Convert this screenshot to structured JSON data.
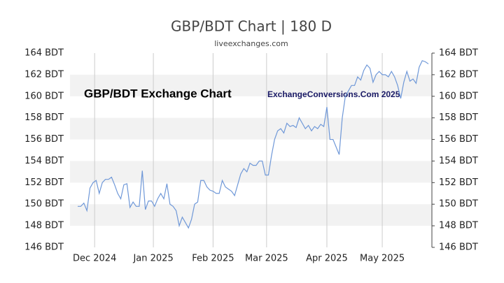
{
  "chart_data": {
    "type": "line",
    "title": "GBP/BDT Chart | 180 D",
    "subtitle": "liveexchanges.com",
    "annotations": [
      "GBP/BDT Exchange Chart",
      "ExchangeConversions.Com 2025"
    ],
    "color": "#6f98d8",
    "bands": true,
    "values": [
      149.8,
      149.8,
      150.1,
      149.4,
      151.5,
      152.0,
      152.2,
      151.0,
      152.0,
      152.3,
      152.3,
      152.5,
      151.8,
      151.0,
      150.5,
      151.8,
      151.9,
      149.7,
      150.2,
      149.8,
      149.8,
      153.1,
      149.5,
      150.3,
      150.3,
      149.8,
      150.5,
      151.0,
      150.5,
      151.9,
      150.0,
      149.8,
      149.4,
      148.0,
      148.8,
      148.3,
      147.8,
      148.6,
      150.0,
      150.2,
      152.2,
      152.2,
      151.6,
      151.3,
      151.2,
      151.0,
      151.0,
      152.2,
      151.6,
      151.4,
      151.2,
      150.8,
      151.8,
      152.8,
      153.3,
      153.0,
      153.8,
      153.6,
      153.6,
      154.0,
      154.0,
      152.7,
      152.7,
      154.5,
      156.0,
      156.8,
      157.0,
      156.6,
      157.5,
      157.2,
      157.3,
      157.1,
      158.0,
      157.5,
      157.0,
      157.3,
      156.8,
      157.2,
      157.0,
      157.4,
      157.2,
      159.0,
      156.0,
      156.0,
      155.3,
      154.6,
      158.0,
      160.0,
      160.5,
      161.0,
      161.0,
      161.8,
      161.5,
      162.4,
      162.9,
      162.6,
      161.3,
      162.0,
      162.3,
      162.0,
      162.0,
      161.8,
      162.3,
      161.8,
      161.0,
      159.8,
      161.3,
      162.3,
      161.4,
      161.6,
      161.2,
      162.7,
      163.3,
      163.2,
      163.0
    ],
    "xlim": [
      0,
      114
    ],
    "xticks": [
      {
        "value": 5.5,
        "label": "Dec 2024"
      },
      {
        "value": 24.6,
        "label": "Jan 2025"
      },
      {
        "value": 44,
        "label": "Feb 2025"
      },
      {
        "value": 61.4,
        "label": "Mar 2025"
      },
      {
        "value": 81,
        "label": "Apr 2025"
      },
      {
        "value": 99,
        "label": "May 2025"
      }
    ],
    "ylim": [
      146,
      164
    ],
    "yticks": [
      {
        "value": 146,
        "label": "146 BDT"
      },
      {
        "value": 148,
        "label": "148 BDT"
      },
      {
        "value": 150,
        "label": "150 BDT"
      },
      {
        "value": 152,
        "label": "152 BDT"
      },
      {
        "value": 154,
        "label": "154 BDT"
      },
      {
        "value": 156,
        "label": "156 BDT"
      },
      {
        "value": 158,
        "label": "158 BDT"
      },
      {
        "value": 160,
        "label": "160 BDT"
      },
      {
        "value": 162,
        "label": "162 BDT"
      },
      {
        "value": 164,
        "label": "164 BDT"
      }
    ]
  }
}
